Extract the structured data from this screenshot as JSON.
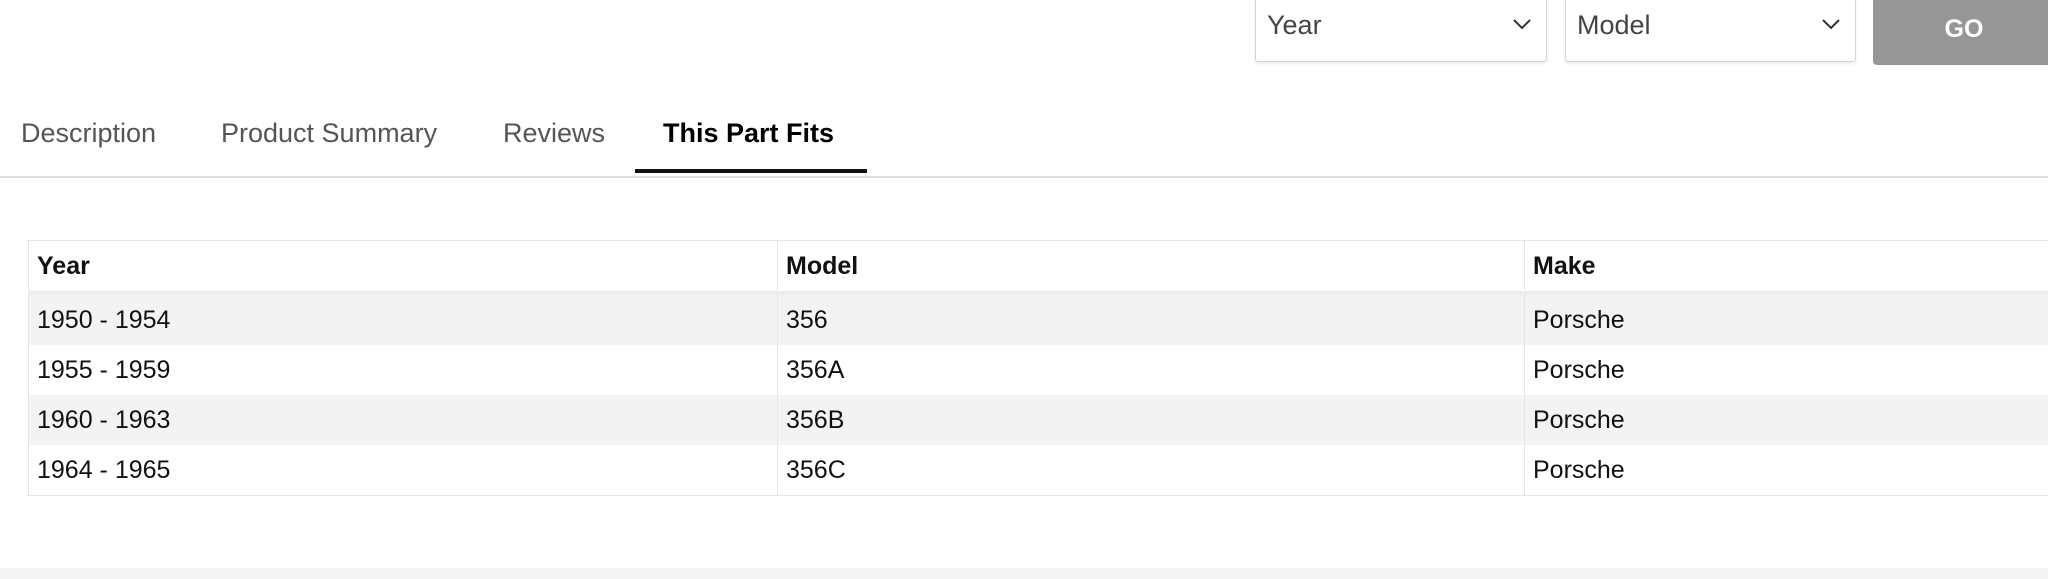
{
  "filters": {
    "year_placeholder": "Year",
    "model_placeholder": "Model",
    "go_label": "GO",
    "go_color": "#969696"
  },
  "tabs": [
    {
      "label": "Description",
      "active": false
    },
    {
      "label": "Product Summary",
      "active": false
    },
    {
      "label": "Reviews",
      "active": false
    },
    {
      "label": "This Part Fits",
      "active": true
    }
  ],
  "fitment_table": {
    "headers": [
      "Year",
      "Model",
      "Make"
    ],
    "rows": [
      [
        "1950 - 1954",
        "356",
        "Porsche"
      ],
      [
        "1955 - 1959",
        "356A",
        "Porsche"
      ],
      [
        "1960 - 1963",
        "356B",
        "Porsche"
      ],
      [
        "1964 - 1965",
        "356C",
        "Porsche"
      ]
    ]
  }
}
